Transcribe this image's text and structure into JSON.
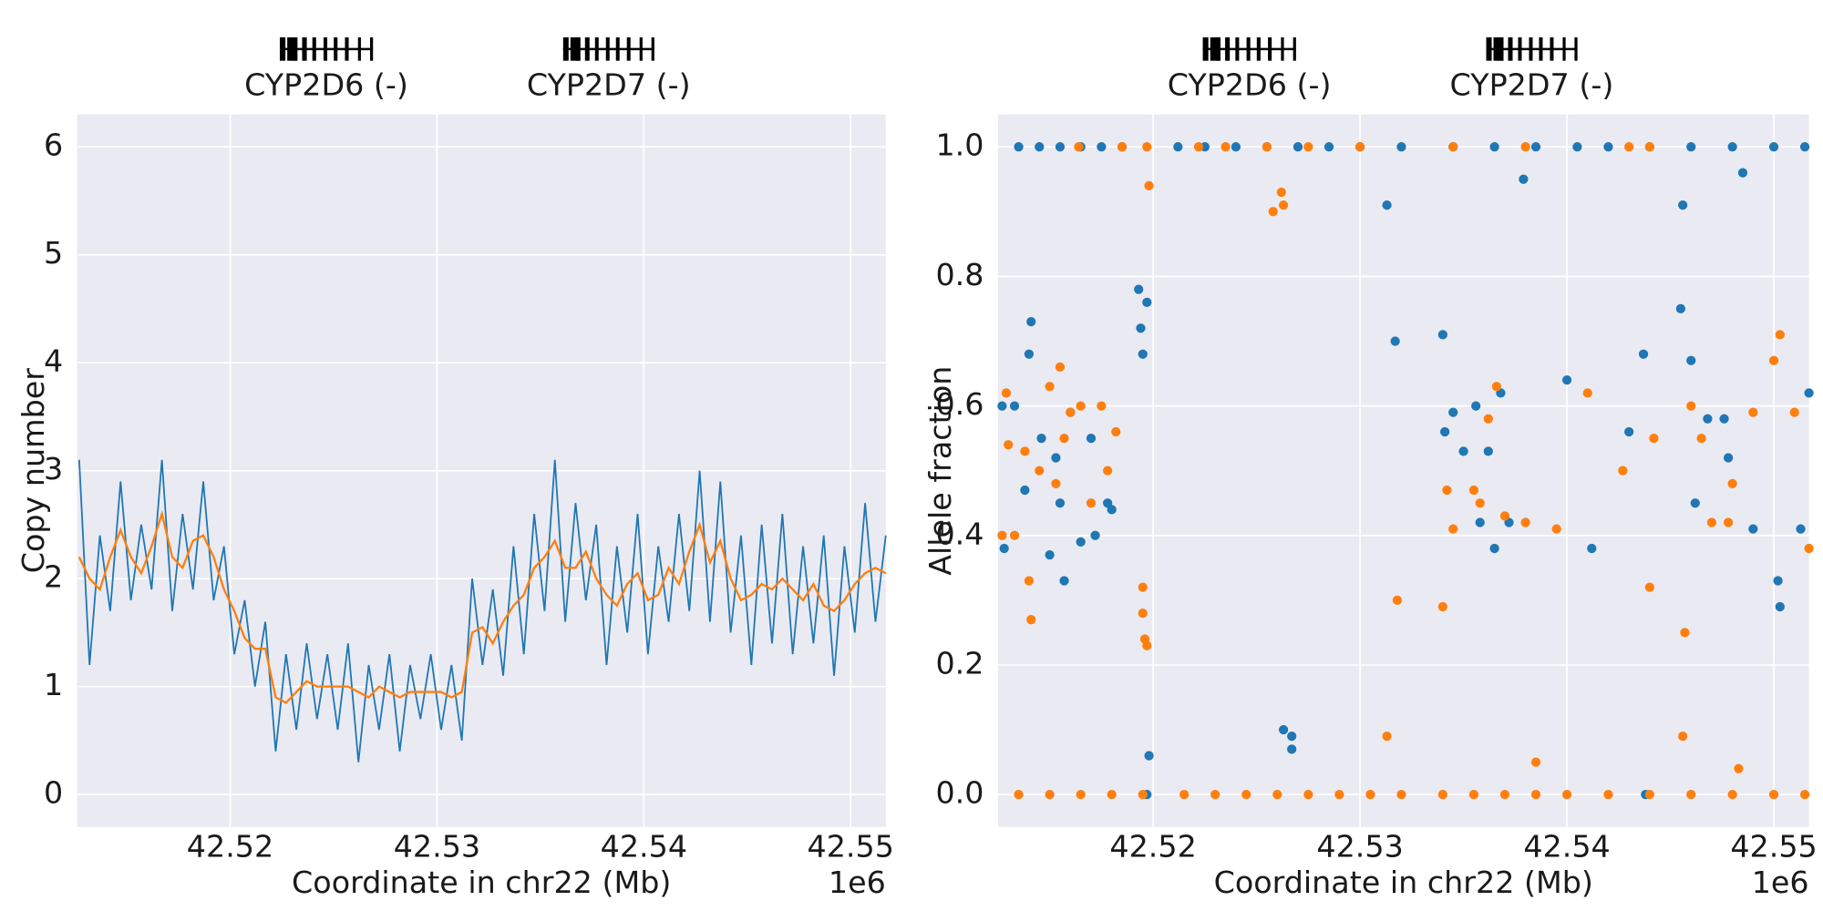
{
  "chart_data": [
    {
      "type": "line",
      "y_label": "Copy number",
      "x_label": "Coordinate in chr22 (Mb)",
      "x_offset_label": "1e6",
      "xlim": [
        42.5126,
        42.5517
      ],
      "xticks": [
        42.52,
        42.53,
        42.54,
        42.55
      ],
      "ylim": [
        -0.3,
        6.3
      ],
      "yticks": [
        0,
        1,
        2,
        3,
        4,
        5,
        6
      ],
      "grid": true,
      "genes": [
        {
          "name": "CYP2D6 (-)",
          "start": 42.5224,
          "end": 42.5269
        },
        {
          "name": "CYP2D7 (-)",
          "start": 42.5361,
          "end": 42.5405
        }
      ],
      "x": [
        42.5127,
        42.5132,
        42.5137,
        42.5142,
        42.5147,
        42.5152,
        42.5157,
        42.5162,
        42.5167,
        42.5172,
        42.5177,
        42.5182,
        42.5187,
        42.5192,
        42.5197,
        42.5202,
        42.5207,
        42.5212,
        42.5217,
        42.5222,
        42.5227,
        42.5232,
        42.5237,
        42.5242,
        42.5247,
        42.5252,
        42.5257,
        42.5262,
        42.5267,
        42.5272,
        42.5277,
        42.5282,
        42.5287,
        42.5292,
        42.5297,
        42.5302,
        42.5307,
        42.5312,
        42.5317,
        42.5322,
        42.5327,
        42.5332,
        42.5337,
        42.5342,
        42.5347,
        42.5352,
        42.5357,
        42.5362,
        42.5367,
        42.5372,
        42.5377,
        42.5382,
        42.5387,
        42.5392,
        42.5397,
        42.5402,
        42.5407,
        42.5412,
        42.5417,
        42.5422,
        42.5427,
        42.5432,
        42.5437,
        42.5442,
        42.5447,
        42.5452,
        42.5457,
        42.5462,
        42.5467,
        42.5472,
        42.5477,
        42.5482,
        42.5487,
        42.5492,
        42.5497,
        42.5502,
        42.5507,
        42.5512,
        42.5517
      ],
      "series": [
        {
          "color": "#1f77b4",
          "values": [
            3.1,
            1.2,
            2.4,
            1.7,
            2.9,
            1.8,
            2.5,
            1.9,
            3.1,
            1.7,
            2.6,
            1.9,
            2.9,
            1.8,
            2.3,
            1.3,
            1.8,
            1.0,
            1.6,
            0.4,
            1.3,
            0.6,
            1.4,
            0.7,
            1.3,
            0.6,
            1.4,
            0.3,
            1.2,
            0.6,
            1.3,
            0.4,
            1.2,
            0.7,
            1.3,
            0.6,
            1.2,
            0.5,
            2.0,
            1.2,
            1.9,
            1.1,
            2.3,
            1.3,
            2.6,
            1.7,
            3.1,
            1.6,
            2.7,
            1.8,
            2.5,
            1.2,
            2.3,
            1.5,
            2.6,
            1.3,
            2.3,
            1.6,
            2.6,
            1.7,
            3.0,
            1.6,
            2.9,
            1.5,
            2.4,
            1.2,
            2.5,
            1.4,
            2.6,
            1.3,
            2.3,
            1.4,
            2.4,
            1.1,
            2.3,
            1.5,
            2.7,
            1.6,
            2.4
          ]
        },
        {
          "color": "#ff7f0e",
          "values": [
            2.2,
            2.0,
            1.9,
            2.2,
            2.45,
            2.2,
            2.05,
            2.3,
            2.6,
            2.2,
            2.1,
            2.35,
            2.4,
            2.2,
            1.9,
            1.7,
            1.45,
            1.35,
            1.35,
            0.9,
            0.85,
            0.95,
            1.05,
            1.0,
            1.0,
            1.0,
            1.0,
            0.95,
            0.9,
            1.0,
            0.95,
            0.9,
            0.95,
            0.95,
            0.95,
            0.95,
            0.9,
            0.95,
            1.5,
            1.55,
            1.4,
            1.6,
            1.75,
            1.85,
            2.1,
            2.2,
            2.35,
            2.1,
            2.1,
            2.25,
            2.0,
            1.85,
            1.75,
            1.95,
            2.05,
            1.8,
            1.85,
            2.1,
            1.95,
            2.25,
            2.5,
            2.15,
            2.35,
            2.0,
            1.8,
            1.85,
            1.95,
            1.9,
            2.0,
            1.9,
            1.8,
            1.95,
            1.75,
            1.7,
            1.8,
            1.95,
            2.05,
            2.1,
            2.05
          ]
        }
      ]
    },
    {
      "type": "scatter",
      "y_label": "Allele fraction",
      "x_label": "Coordinate in chr22 (Mb)",
      "x_offset_label": "1e6",
      "xlim": [
        42.5125,
        42.5517
      ],
      "xticks": [
        42.52,
        42.53,
        42.54,
        42.55
      ],
      "ylim": [
        -0.05,
        1.05
      ],
      "yticks": [
        {
          "value": 0,
          "label": "0.0"
        },
        0.2,
        0.4,
        0.6,
        0.8,
        {
          "value": 1,
          "label": "1.0"
        }
      ],
      "grid": true,
      "genes": [
        {
          "name": "CYP2D6 (-)",
          "start": 42.5224,
          "end": 42.5269
        },
        {
          "name": "CYP2D7 (-)",
          "start": 42.5361,
          "end": 42.5405
        }
      ],
      "series": [
        {
          "color": "#1f77b4",
          "x": [
            42.5135,
            42.5145,
            42.5155,
            42.5165,
            42.5175,
            42.5185,
            42.5212,
            42.5225,
            42.524,
            42.5255,
            42.527,
            42.5285,
            42.53,
            42.532,
            42.5345,
            42.5365,
            42.5385,
            42.5405,
            42.542,
            42.544,
            42.546,
            42.548,
            42.55,
            42.5515,
            42.5127,
            42.5128,
            42.5133,
            42.5138,
            42.514,
            42.5141,
            42.5146,
            42.515,
            42.5153,
            42.5155,
            42.5157,
            42.516,
            42.5165,
            42.517,
            42.5172,
            42.5178,
            42.518,
            42.5193,
            42.5194,
            42.5195,
            42.5197,
            42.5198,
            42.5263,
            42.5267,
            42.5267,
            42.5313,
            42.5317,
            42.534,
            42.5341,
            42.5345,
            42.535,
            42.5356,
            42.5358,
            42.5362,
            42.5365,
            42.5368,
            42.5372,
            42.5379,
            42.54,
            42.5412,
            42.543,
            42.5437,
            42.5455,
            42.5456,
            42.546,
            42.5462,
            42.5468,
            42.5476,
            42.5478,
            42.5485,
            42.549,
            42.5502,
            42.5503,
            42.5513,
            42.5517,
            42.5197,
            42.5438
          ],
          "values": [
            1,
            1,
            1,
            1,
            1,
            1,
            1,
            1,
            1,
            1,
            1,
            1,
            1,
            1,
            1,
            1,
            1,
            1,
            1,
            1,
            1,
            1,
            1,
            1,
            0.6,
            0.38,
            0.6,
            0.47,
            0.68,
            0.73,
            0.55,
            0.37,
            0.52,
            0.45,
            0.33,
            0.59,
            0.39,
            0.55,
            0.4,
            0.45,
            0.44,
            0.78,
            0.72,
            0.68,
            0.76,
            0.06,
            0.1,
            0.09,
            0.07,
            0.91,
            0.7,
            0.71,
            0.56,
            0.59,
            0.53,
            0.6,
            0.42,
            0.53,
            0.38,
            0.62,
            0.42,
            0.95,
            0.64,
            0.38,
            0.56,
            0.68,
            0.75,
            0.91,
            0.67,
            0.45,
            0.58,
            0.58,
            0.52,
            0.96,
            0.41,
            0.33,
            0.29,
            0.41,
            0.62,
            0,
            0
          ]
        },
        {
          "color": "#ff7f0e",
          "x": [
            42.5135,
            42.515,
            42.5165,
            42.518,
            42.5195,
            42.5215,
            42.523,
            42.5245,
            42.526,
            42.5275,
            42.529,
            42.5305,
            42.532,
            42.534,
            42.5355,
            42.537,
            42.5385,
            42.54,
            42.542,
            42.544,
            42.546,
            42.548,
            42.55,
            42.5515,
            42.5164,
            42.5185,
            42.5197,
            42.5222,
            42.5235,
            42.5255,
            42.5275,
            42.53,
            42.5345,
            42.538,
            42.543,
            42.544,
            42.5127,
            42.5129,
            42.513,
            42.5133,
            42.5138,
            42.514,
            42.5141,
            42.5145,
            42.515,
            42.5153,
            42.5155,
            42.5157,
            42.516,
            42.5165,
            42.517,
            42.5175,
            42.5178,
            42.5182,
            42.5195,
            42.5195,
            42.5196,
            42.5197,
            42.5198,
            42.5258,
            42.5262,
            42.5263,
            42.5313,
            42.5318,
            42.534,
            42.5342,
            42.5345,
            42.5355,
            42.5358,
            42.5362,
            42.5366,
            42.537,
            42.538,
            42.5385,
            42.5395,
            42.541,
            42.5427,
            42.544,
            42.5442,
            42.5456,
            42.5457,
            42.546,
            42.5465,
            42.547,
            42.5478,
            42.548,
            42.5483,
            42.549,
            42.55,
            42.5503,
            42.551,
            42.5517
          ],
          "values": [
            0,
            0,
            0,
            0,
            0,
            0,
            0,
            0,
            0,
            0,
            0,
            0,
            0,
            0,
            0,
            0,
            0,
            0,
            0,
            0,
            0,
            0,
            0,
            0,
            1,
            1,
            1,
            1,
            1,
            1,
            1,
            1,
            1,
            1,
            1,
            1,
            0.4,
            0.62,
            0.54,
            0.4,
            0.53,
            0.33,
            0.27,
            0.5,
            0.63,
            0.48,
            0.66,
            0.55,
            0.59,
            0.6,
            0.45,
            0.6,
            0.5,
            0.56,
            0.32,
            0.28,
            0.24,
            0.23,
            0.94,
            0.9,
            0.93,
            0.91,
            0.09,
            0.3,
            0.29,
            0.47,
            0.41,
            0.47,
            0.45,
            0.58,
            0.63,
            0.43,
            0.42,
            0.05,
            0.41,
            0.62,
            0.5,
            0.32,
            0.55,
            0.09,
            0.25,
            0.6,
            0.55,
            0.42,
            0.42,
            0.48,
            0.04,
            0.59,
            0.67,
            0.71,
            0.59,
            0.38
          ]
        }
      ]
    }
  ]
}
